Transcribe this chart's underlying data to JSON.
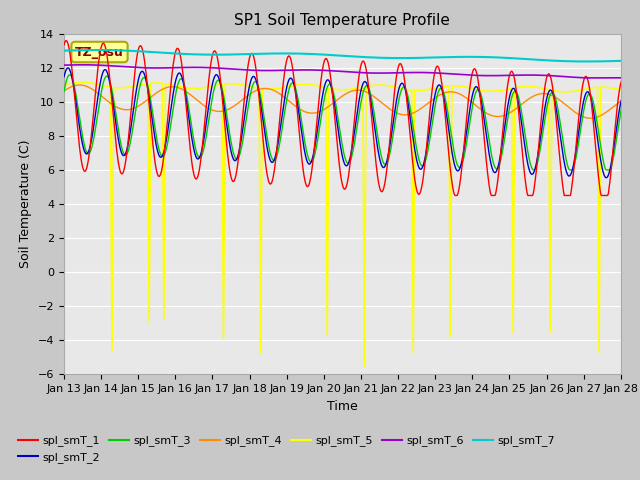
{
  "title": "SP1 Soil Temperature Profile",
  "xlabel": "Time",
  "ylabel": "Soil Temperature (C)",
  "ylim": [
    -6,
    14
  ],
  "yticks": [
    -6,
    -4,
    -2,
    0,
    2,
    4,
    6,
    8,
    10,
    12,
    14
  ],
  "x_tick_labels": [
    "Jan 13",
    "Jan 14",
    "Jan 15",
    "Jan 16",
    "Jan 17",
    "Jan 18",
    "Jan 19",
    "Jan 20",
    "Jan 21",
    "Jan 22",
    "Jan 23",
    "Jan 24",
    "Jan 25",
    "Jan 26",
    "Jan 27",
    "Jan 28"
  ],
  "series_colors": {
    "spl_smT_1": "#FF0000",
    "spl_smT_2": "#0000CC",
    "spl_smT_3": "#00CC00",
    "spl_smT_4": "#FF8C00",
    "spl_smT_5": "#FFFF00",
    "spl_smT_6": "#9900CC",
    "spl_smT_7": "#00CCCC"
  },
  "annotation_text": "TZ_osu",
  "annotation_color": "#8B0000",
  "annotation_bg": "#FFFF99",
  "annotation_edge": "#AAAA00",
  "fig_bg": "#C8C8C8",
  "plot_bg": "#E8E8E8",
  "grid_color": "#FFFFFF",
  "title_fontsize": 11,
  "axis_fontsize": 9,
  "tick_fontsize": 8,
  "legend_fontsize": 8
}
